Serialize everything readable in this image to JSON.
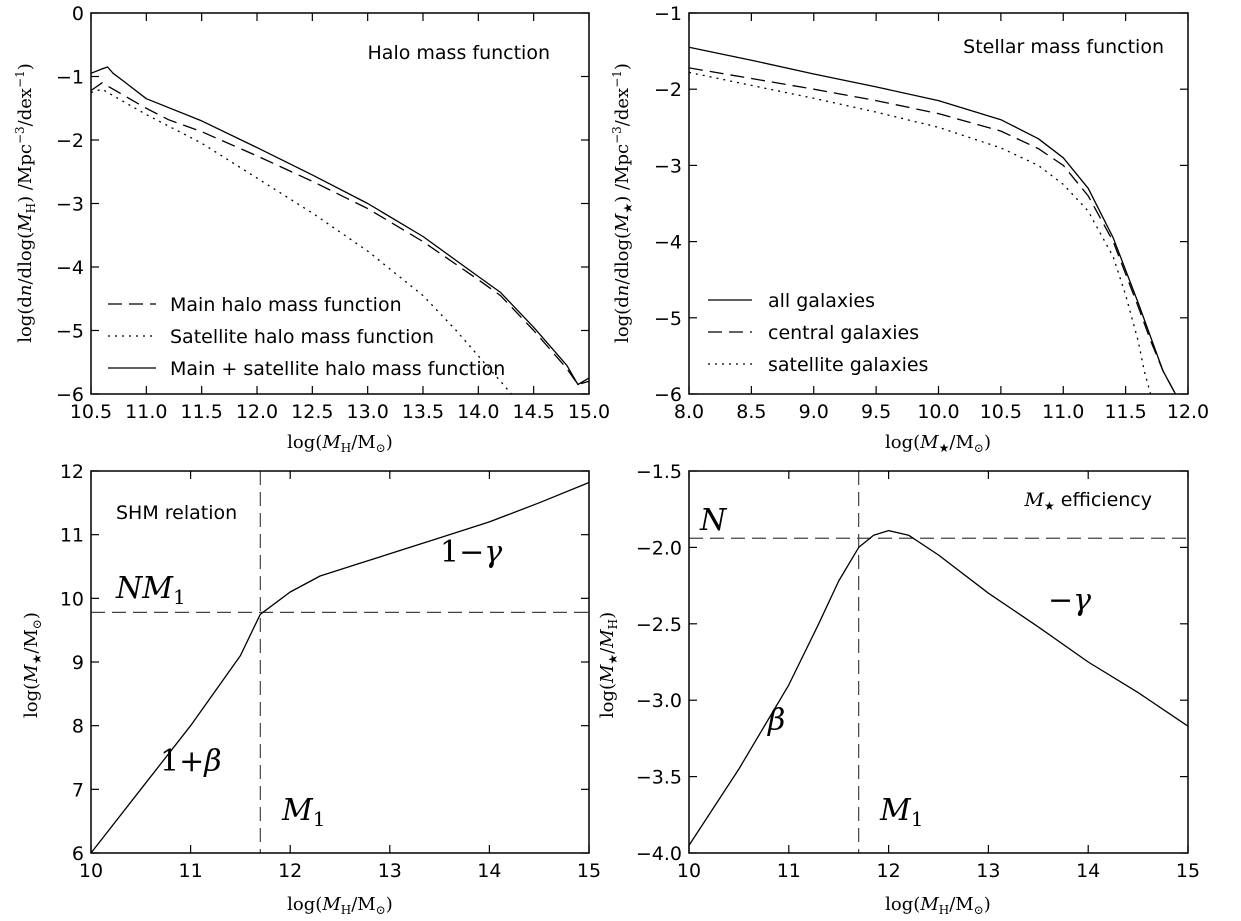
{
  "chart_data": [
    {
      "type": "line",
      "title": "Halo mass function",
      "xlabel": "log(M_H/M_⊙)",
      "ylabel": "log(dn/dlog(M_H) /Mpc^-3/dex^-1)",
      "xlim": [
        10.5,
        15.0
      ],
      "ylim": [
        -6,
        0
      ],
      "xticks": [
        "10.5",
        "11.0",
        "11.5",
        "12.0",
        "12.5",
        "13.0",
        "13.5",
        "14.0",
        "14.5",
        "15.0"
      ],
      "yticks": [
        "0",
        "−1",
        "−2",
        "−3",
        "−4",
        "−5",
        "−6"
      ],
      "legend_position": "lower-left",
      "series": [
        {
          "name": "Main halo mass function",
          "style": "dashed",
          "x": [
            10.5,
            10.6,
            10.7,
            10.8,
            11.0,
            11.2,
            11.5,
            12.0,
            12.5,
            13.0,
            13.5,
            14.0,
            14.2,
            14.5,
            14.8,
            14.9,
            15.0
          ],
          "y": [
            -1.22,
            -1.1,
            -1.2,
            -1.3,
            -1.5,
            -1.68,
            -1.87,
            -2.25,
            -2.65,
            -3.08,
            -3.6,
            -4.2,
            -4.45,
            -5.0,
            -5.6,
            -5.85,
            -5.8
          ]
        },
        {
          "name": "Satellite halo mass function",
          "style": "dotted",
          "x": [
            10.5,
            10.6,
            10.7,
            11.0,
            11.5,
            12.0,
            12.5,
            13.0,
            13.5,
            13.8,
            14.0,
            14.2,
            14.3
          ],
          "y": [
            -1.25,
            -1.2,
            -1.3,
            -1.6,
            -2.05,
            -2.6,
            -3.15,
            -3.75,
            -4.45,
            -5.0,
            -5.4,
            -5.8,
            -6.0
          ]
        },
        {
          "name": "Main + satellite halo mass function",
          "style": "solid",
          "x": [
            10.5,
            10.6,
            10.65,
            10.7,
            10.8,
            11.0,
            11.5,
            12.0,
            12.5,
            13.0,
            13.5,
            14.0,
            14.2,
            14.5,
            14.8,
            14.9,
            15.0
          ],
          "y": [
            -0.95,
            -0.88,
            -0.85,
            -0.95,
            -1.08,
            -1.35,
            -1.7,
            -2.12,
            -2.55,
            -3.0,
            -3.52,
            -4.15,
            -4.4,
            -4.95,
            -5.55,
            -5.85,
            -5.75
          ]
        }
      ]
    },
    {
      "type": "line",
      "title": "Stellar mass function",
      "xlabel": "log(M_★/M_⊙)",
      "ylabel": "log(dn/dlog(M_★) /Mpc^-3/dex^-1)",
      "xlim": [
        8.0,
        12.0
      ],
      "ylim": [
        -6,
        -1
      ],
      "xticks": [
        "8.0",
        "8.5",
        "9.0",
        "9.5",
        "10.0",
        "10.5",
        "11.0",
        "11.5",
        "12.0"
      ],
      "yticks": [
        "−1",
        "−2",
        "−3",
        "−4",
        "−5",
        "−6"
      ],
      "legend_position": "lower-left",
      "series": [
        {
          "name": "all galaxies",
          "style": "solid",
          "x": [
            8.0,
            8.5,
            9.0,
            9.5,
            10.0,
            10.5,
            10.8,
            11.0,
            11.2,
            11.4,
            11.6,
            11.7,
            11.8,
            11.9
          ],
          "y": [
            -1.45,
            -1.62,
            -1.8,
            -1.97,
            -2.15,
            -2.4,
            -2.65,
            -2.9,
            -3.3,
            -3.95,
            -4.8,
            -5.25,
            -5.7,
            -6.0
          ]
        },
        {
          "name": "central galaxies",
          "style": "dashed",
          "x": [
            8.0,
            8.5,
            9.0,
            9.5,
            10.0,
            10.5,
            10.8,
            11.0,
            11.2,
            11.4,
            11.6,
            11.7,
            11.8,
            11.9
          ],
          "y": [
            -1.72,
            -1.86,
            -2.0,
            -2.15,
            -2.32,
            -2.55,
            -2.78,
            -3.0,
            -3.4,
            -4.0,
            -4.85,
            -5.3,
            -5.7,
            -6.0
          ]
        },
        {
          "name": "satellite galaxies",
          "style": "dotted",
          "x": [
            8.0,
            8.5,
            9.0,
            9.5,
            10.0,
            10.5,
            10.8,
            11.0,
            11.2,
            11.4,
            11.5,
            11.6,
            11.65,
            11.7
          ],
          "y": [
            -1.78,
            -1.95,
            -2.12,
            -2.3,
            -2.5,
            -2.77,
            -3.0,
            -3.25,
            -3.6,
            -4.2,
            -4.7,
            -5.3,
            -5.7,
            -6.0
          ]
        }
      ]
    },
    {
      "type": "line",
      "title": "SHM relation",
      "xlabel": "log(M_H/M_⊙)",
      "ylabel": "log(M_★/M_⊙)",
      "xlim": [
        10,
        15
      ],
      "ylim": [
        6,
        12
      ],
      "xticks": [
        "10",
        "11",
        "12",
        "13",
        "14",
        "15"
      ],
      "yticks": [
        "6",
        "7",
        "8",
        "9",
        "10",
        "11",
        "12"
      ],
      "reference_lines": {
        "x": 11.7,
        "y": 9.78
      },
      "annotations": [
        "NM₁",
        "1−γ",
        "1+β",
        "M₁"
      ],
      "series": [
        {
          "style": "solid",
          "x": [
            10.0,
            10.5,
            11.0,
            11.5,
            11.7,
            12.0,
            12.3,
            12.7,
            13.0,
            13.5,
            14.0,
            14.5,
            15.0
          ],
          "y": [
            6.0,
            7.0,
            8.0,
            9.1,
            9.75,
            10.1,
            10.35,
            10.55,
            10.7,
            10.95,
            11.2,
            11.5,
            11.82
          ]
        }
      ]
    },
    {
      "type": "line",
      "title": "M_★ efficiency",
      "xlabel": "log(M_H/M_⊙)",
      "ylabel": "log(M_★/M_H)",
      "xlim": [
        10,
        15
      ],
      "ylim": [
        -4.0,
        -1.5
      ],
      "xticks": [
        "10",
        "11",
        "12",
        "13",
        "14",
        "15"
      ],
      "yticks": [
        "−1.5",
        "−2.0",
        "−2.5",
        "−3.0",
        "−3.5",
        "−4.0"
      ],
      "reference_lines": {
        "x": 11.7,
        "y": -1.94
      },
      "annotations": [
        "N",
        "−γ",
        "β",
        "M₁"
      ],
      "series": [
        {
          "style": "solid",
          "x": [
            10.0,
            10.5,
            11.0,
            11.3,
            11.5,
            11.7,
            11.85,
            12.0,
            12.2,
            12.5,
            13.0,
            13.5,
            14.0,
            14.5,
            15.0
          ],
          "y": [
            -3.95,
            -3.45,
            -2.9,
            -2.5,
            -2.22,
            -2.0,
            -1.92,
            -1.89,
            -1.92,
            -2.05,
            -2.3,
            -2.52,
            -2.75,
            -2.95,
            -3.17
          ]
        }
      ]
    }
  ]
}
